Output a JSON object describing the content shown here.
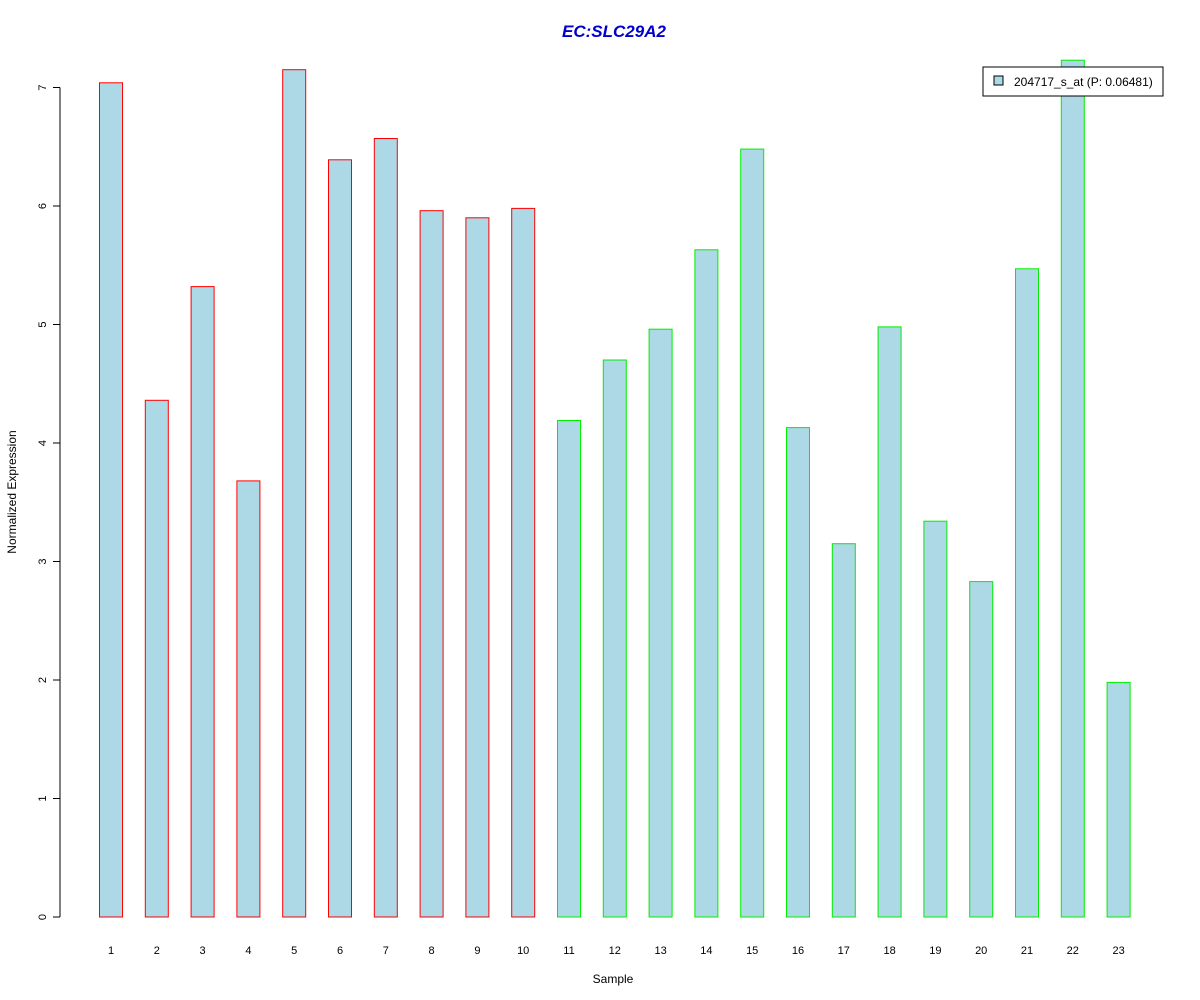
{
  "chart_data": {
    "type": "bar",
    "title": "EC:SLC29A2",
    "xlabel": "Sample",
    "ylabel": "Normalized Expression",
    "categories": [
      "1",
      "2",
      "3",
      "4",
      "5",
      "6",
      "7",
      "8",
      "9",
      "10",
      "11",
      "12",
      "13",
      "14",
      "15",
      "16",
      "17",
      "18",
      "19",
      "20",
      "21",
      "22",
      "23"
    ],
    "series": [
      {
        "name": "204717_s_at (P: 0.06481)",
        "values": [
          7.04,
          4.36,
          5.32,
          3.68,
          7.15,
          6.39,
          6.57,
          5.96,
          5.9,
          5.98,
          4.19,
          4.7,
          4.96,
          5.63,
          6.48,
          4.13,
          3.15,
          4.98,
          3.34,
          2.83,
          5.47,
          7.23,
          1.98
        ]
      }
    ],
    "yticks": [
      "0",
      "1",
      "2",
      "3",
      "4",
      "5",
      "6",
      "7"
    ],
    "ylim": [
      0,
      7.3
    ],
    "legend_position": "top-right",
    "grid": false,
    "colors": {
      "title": "#0000cc",
      "bar_fill": "#add8e6",
      "group1_border": "#ff0000",
      "group2_border": "#00ee00",
      "axis": "#000000"
    },
    "border_groups": [
      "group1",
      "group1",
      "group1",
      "group1",
      "group1",
      "group1",
      "group1",
      "group1",
      "group1",
      "group1",
      "group2",
      "group2",
      "group2",
      "group2",
      "group2",
      "group2",
      "group2",
      "group2",
      "group2",
      "group2",
      "group2",
      "group2",
      "group2"
    ]
  }
}
